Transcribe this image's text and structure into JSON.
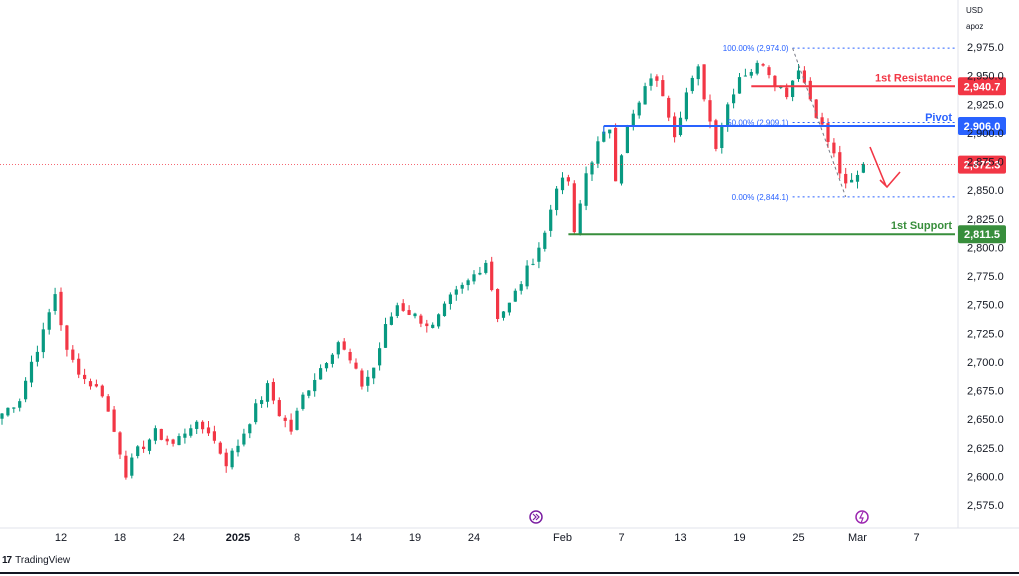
{
  "chart_data": {
    "type": "candlestick",
    "instrument_currency": "USD",
    "instrument_note": "apoz",
    "y_axis": {
      "ylim": [
        2560,
        2995
      ],
      "ticks": [
        2575,
        2600,
        2625,
        2650,
        2675,
        2700,
        2725,
        2750,
        2775,
        2800,
        2825,
        2850,
        2875,
        2900,
        2925,
        2950,
        2975
      ],
      "labels": [
        "2,575.0",
        "2,600.0",
        "2,625.0",
        "2,650.0",
        "2,675.0",
        "2,700.0",
        "2,725.0",
        "2,750.0",
        "2,775.0",
        "2,800.0",
        "2,825.0",
        "2,850.0",
        "2,875.0",
        "2,900.0",
        "2,925.0",
        "2,950.0",
        "2,975.0"
      ]
    },
    "x_axis": {
      "labels": [
        "12",
        "18",
        "24",
        "2025",
        "8",
        "14",
        "19",
        "24",
        "Feb",
        "7",
        "13",
        "19",
        "25",
        "Mar",
        "7"
      ],
      "bold": [
        "2025"
      ],
      "bar_index": [
        10,
        20,
        30,
        40,
        50,
        60,
        70,
        80,
        95,
        105,
        115,
        125,
        135,
        145,
        155
      ]
    },
    "price_path": [
      [
        0,
        2655
      ],
      [
        3,
        2668
      ],
      [
        5,
        2700
      ],
      [
        7,
        2725
      ],
      [
        9,
        2760
      ],
      [
        11,
        2708
      ],
      [
        14,
        2685
      ],
      [
        17,
        2673
      ],
      [
        20,
        2622
      ],
      [
        21,
        2603
      ],
      [
        23,
        2622
      ],
      [
        26,
        2638
      ],
      [
        29,
        2628
      ],
      [
        32,
        2645
      ],
      [
        35,
        2640
      ],
      [
        38,
        2612
      ],
      [
        40,
        2628
      ],
      [
        43,
        2660
      ],
      [
        45,
        2678
      ],
      [
        47,
        2655
      ],
      [
        49,
        2640
      ],
      [
        51,
        2670
      ],
      [
        54,
        2695
      ],
      [
        57,
        2718
      ],
      [
        59,
        2700
      ],
      [
        61,
        2680
      ],
      [
        63,
        2695
      ],
      [
        65,
        2730
      ],
      [
        67,
        2750
      ],
      [
        70,
        2740
      ],
      [
        73,
        2730
      ],
      [
        76,
        2755
      ],
      [
        79,
        2770
      ],
      [
        82,
        2788
      ],
      [
        84,
        2740
      ],
      [
        86,
        2750
      ],
      [
        88,
        2770
      ],
      [
        90,
        2790
      ],
      [
        92,
        2812
      ],
      [
        94,
        2855
      ],
      [
        96,
        2858
      ],
      [
        97,
        2810
      ],
      [
        99,
        2865
      ],
      [
        101,
        2890
      ],
      [
        103,
        2905
      ],
      [
        104,
        2862
      ],
      [
        106,
        2905
      ],
      [
        108,
        2925
      ],
      [
        110,
        2950
      ],
      [
        112,
        2935
      ],
      [
        114,
        2900
      ],
      [
        116,
        2935
      ],
      [
        118,
        2955
      ],
      [
        120,
        2910
      ],
      [
        121,
        2890
      ],
      [
        123,
        2925
      ],
      [
        125,
        2950
      ],
      [
        127,
        2955
      ],
      [
        129,
        2962
      ],
      [
        131,
        2945
      ],
      [
        133,
        2935
      ],
      [
        135,
        2958
      ],
      [
        137,
        2930
      ],
      [
        139,
        2905
      ],
      [
        141,
        2880
      ],
      [
        143,
        2852
      ],
      [
        145,
        2862
      ],
      [
        146,
        2875
      ]
    ],
    "levels": [
      {
        "name": "1st Resistance",
        "value": 2940.7,
        "tag": "2,940.7",
        "color": "#f23645"
      },
      {
        "name": "Pivot",
        "value": 2906.0,
        "tag": "2,906.0",
        "color": "#2962ff"
      },
      {
        "name": "1st Support",
        "value": 2811.5,
        "tag": "2,811.5",
        "color": "#388e3c"
      }
    ],
    "current_price": {
      "value": 2872.3,
      "tag": "2,872.3",
      "color": "#f23645"
    },
    "fibonacci": [
      {
        "label": "100.00% (2,974.0)",
        "value": 2974.0
      },
      {
        "label": "50.00% (2,909.1)",
        "value": 2909.1
      },
      {
        "label": "0.00% (2,844.1)",
        "value": 2844.1
      }
    ],
    "forecast_arrow": "down",
    "colors": {
      "up": "#089981",
      "down": "#f23645",
      "text": "#131722",
      "axis_bg": "#ffffff"
    }
  },
  "branding": {
    "name": "TradingView",
    "mark": "17"
  }
}
